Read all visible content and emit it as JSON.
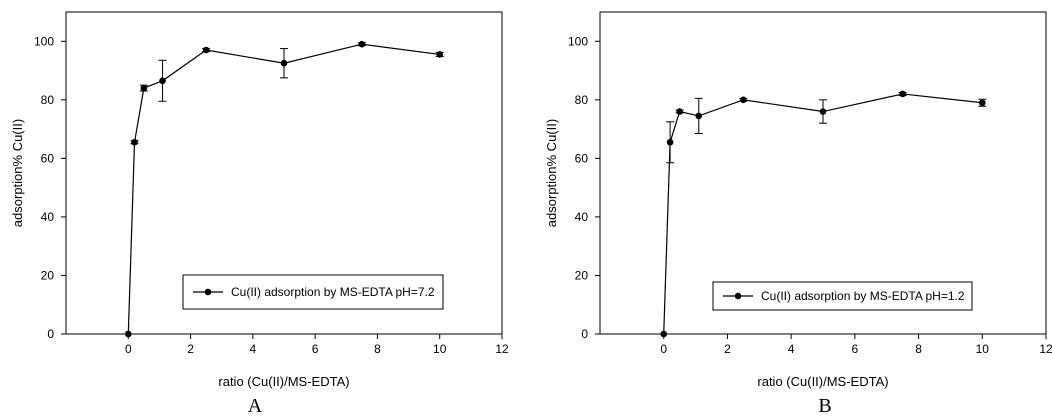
{
  "chart_data": [
    {
      "panel": "A",
      "type": "line",
      "xlabel": "ratio (Cu(II)/MS-EDTA)",
      "ylabel": "adsorption% Cu(II)",
      "xlim": [
        -2,
        12
      ],
      "ylim": [
        0,
        110
      ],
      "xticks": [
        0,
        2,
        4,
        6,
        8,
        10,
        12
      ],
      "yticks": [
        0,
        20,
        40,
        60,
        80,
        100
      ],
      "grid": false,
      "legend_placement": "lower-right",
      "series": [
        {
          "name": "Cu(II)  adsorption by MS-EDTA pH=7.2",
          "marker": "filled-circle",
          "color": "#000000",
          "x": [
            0,
            0.2,
            0.5,
            1.1,
            2.5,
            5,
            7.5,
            10
          ],
          "y": [
            0,
            65.5,
            84,
            86.5,
            97,
            92.5,
            99,
            95.5
          ],
          "error": [
            0,
            0.5,
            1,
            7,
            0.5,
            5,
            0.5,
            0.7
          ]
        }
      ]
    },
    {
      "panel": "B",
      "type": "line",
      "xlabel": "ratio (Cu(II)/MS-EDTA)",
      "ylabel": "adsorption% Cu(II)",
      "xlim": [
        -2,
        12
      ],
      "ylim": [
        0,
        110
      ],
      "xticks": [
        0,
        2,
        4,
        6,
        8,
        10,
        12
      ],
      "yticks": [
        0,
        20,
        40,
        60,
        80,
        100
      ],
      "grid": false,
      "legend_placement": "lower-right",
      "series": [
        {
          "name": "Cu(II) adsorption by MS-EDTA pH=1.2",
          "marker": "filled-circle",
          "color": "#000000",
          "x": [
            0,
            0.2,
            0.5,
            1.1,
            2.5,
            5,
            7.5,
            10
          ],
          "y": [
            0,
            65.5,
            76,
            74.5,
            80,
            76,
            82,
            79
          ],
          "error": [
            0,
            7,
            0.5,
            6,
            0.5,
            4,
            0.5,
            1.2
          ]
        }
      ]
    }
  ]
}
